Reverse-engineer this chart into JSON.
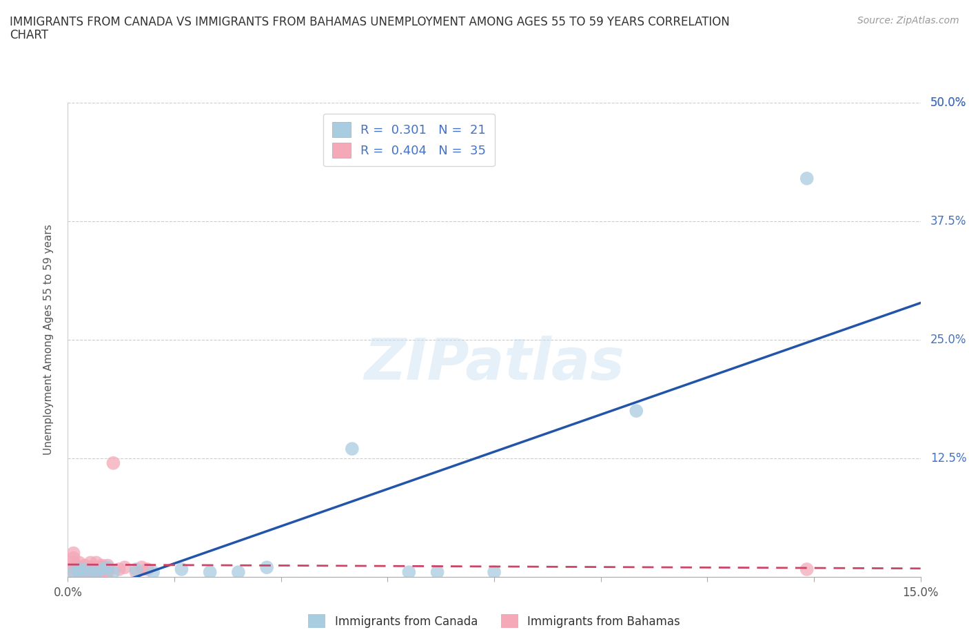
{
  "title_line1": "IMMIGRANTS FROM CANADA VS IMMIGRANTS FROM BAHAMAS UNEMPLOYMENT AMONG AGES 55 TO 59 YEARS CORRELATION",
  "title_line2": "CHART",
  "source": "Source: ZipAtlas.com",
  "ylabel": "Unemployment Among Ages 55 to 59 years",
  "xlabel_canada": "Immigrants from Canada",
  "xlabel_bahamas": "Immigrants from Bahamas",
  "xlim": [
    0,
    0.15
  ],
  "ylim": [
    0,
    0.5
  ],
  "yticks": [
    0,
    0.125,
    0.25,
    0.375,
    0.5
  ],
  "ytick_labels": [
    "",
    "12.5%",
    "25.0%",
    "37.5%",
    "50.0%"
  ],
  "xtick_left_label": "0.0%",
  "xtick_right_label": "15.0%",
  "canada_R": 0.301,
  "canada_N": 21,
  "bahamas_R": 0.404,
  "bahamas_N": 35,
  "color_canada": "#a8cce0",
  "color_bahamas": "#f4a8b8",
  "color_canada_line": "#2255aa",
  "color_bahamas_line": "#cc4466",
  "watermark": "ZIPatlas",
  "canada_x": [
    0.001,
    0.002,
    0.002,
    0.003,
    0.004,
    0.005,
    0.006,
    0.007,
    0.008,
    0.012,
    0.015,
    0.02,
    0.025,
    0.03,
    0.035,
    0.05,
    0.06,
    0.065,
    0.075,
    0.1,
    0.13
  ],
  "canada_y": [
    0.005,
    0.005,
    0.008,
    0.008,
    0.005,
    0.005,
    0.008,
    0.01,
    0.005,
    0.008,
    0.005,
    0.008,
    0.005,
    0.005,
    0.01,
    0.135,
    0.005,
    0.005,
    0.005,
    0.175,
    0.42
  ],
  "bahamas_x": [
    0.001,
    0.001,
    0.001,
    0.001,
    0.001,
    0.002,
    0.002,
    0.002,
    0.002,
    0.003,
    0.003,
    0.003,
    0.004,
    0.004,
    0.004,
    0.004,
    0.004,
    0.005,
    0.005,
    0.005,
    0.005,
    0.006,
    0.006,
    0.006,
    0.006,
    0.007,
    0.007,
    0.007,
    0.008,
    0.009,
    0.01,
    0.012,
    0.013,
    0.014,
    0.13
  ],
  "bahamas_y": [
    0.005,
    0.01,
    0.015,
    0.02,
    0.025,
    0.005,
    0.008,
    0.01,
    0.015,
    0.005,
    0.008,
    0.012,
    0.005,
    0.005,
    0.008,
    0.01,
    0.015,
    0.005,
    0.008,
    0.01,
    0.015,
    0.005,
    0.008,
    0.01,
    0.012,
    0.005,
    0.008,
    0.012,
    0.12,
    0.008,
    0.01,
    0.005,
    0.01,
    0.008,
    0.008
  ]
}
